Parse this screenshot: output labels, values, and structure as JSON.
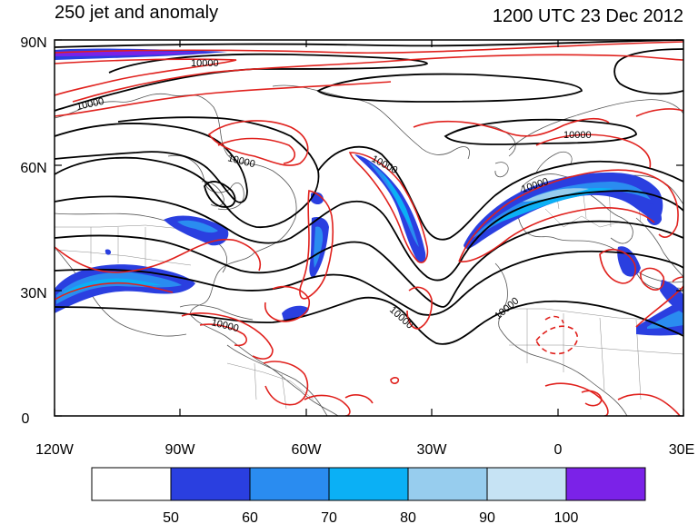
{
  "title_left": "250 jet and anomaly",
  "title_right": "1200 UTC 23 Dec 2012",
  "lat_labels": [
    "90N",
    "60N",
    "30N",
    "0"
  ],
  "lon_labels": [
    "120W",
    "90W",
    "60W",
    "30W",
    "0",
    "30E"
  ],
  "contour_label": "10000",
  "colorbar": {
    "colors": [
      "#ffffff",
      "#2a3fe0",
      "#2a8cf0",
      "#0bb0f5",
      "#97cdee",
      "#c6e3f4",
      "#7b22e8"
    ],
    "labels": [
      "50",
      "60",
      "70",
      "80",
      "90",
      "100"
    ]
  }
}
